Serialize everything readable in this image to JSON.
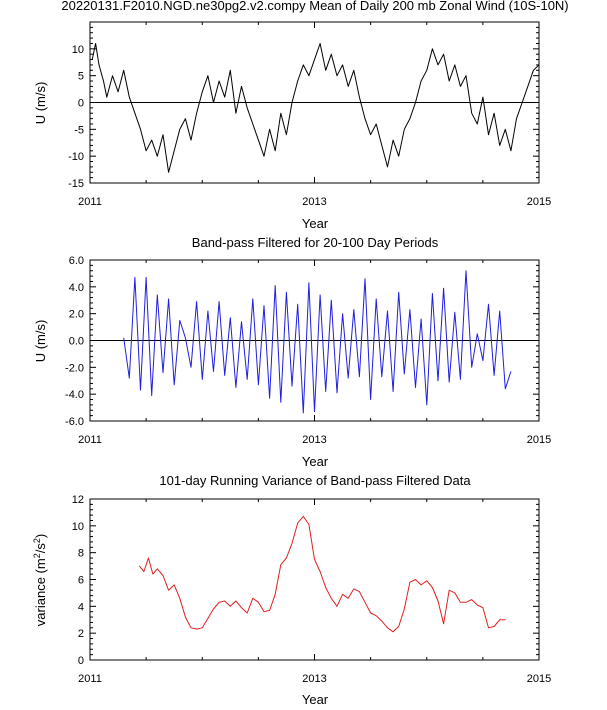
{
  "chart_data": [
    {
      "type": "line",
      "title": "20220131.F2010.NGD.ne30pg2.v2.compy Mean of Daily 200 mb Zonal Wind (10S-10N)",
      "xlabel": "Year",
      "ylabel": "U (m/s)",
      "xlim": [
        2011,
        2015
      ],
      "ylim": [
        -15,
        15
      ],
      "xticks": [
        2011,
        2013,
        2015
      ],
      "xticklabels": [
        "2011",
        "2013",
        "2015"
      ],
      "yticks": [
        -15,
        -10,
        -5,
        0,
        5,
        10,
        15
      ],
      "yticklabels": [
        "-15",
        "-10",
        "-5",
        "0",
        "5",
        "10",
        ""
      ],
      "reference_line": 0,
      "color": "#000000",
      "series": [
        {
          "name": "daily U",
          "x": [
            2011.02,
            2011.05,
            2011.08,
            2011.12,
            2011.15,
            2011.2,
            2011.25,
            2011.3,
            2011.35,
            2011.4,
            2011.45,
            2011.5,
            2011.55,
            2011.6,
            2011.65,
            2011.7,
            2011.75,
            2011.8,
            2011.85,
            2011.9,
            2011.95,
            2012.0,
            2012.05,
            2012.1,
            2012.15,
            2012.2,
            2012.25,
            2012.3,
            2012.35,
            2012.4,
            2012.45,
            2012.5,
            2012.55,
            2012.6,
            2012.65,
            2012.7,
            2012.75,
            2012.8,
            2012.85,
            2012.9,
            2012.95,
            2013.0,
            2013.05,
            2013.1,
            2013.15,
            2013.2,
            2013.25,
            2013.3,
            2013.35,
            2013.4,
            2013.45,
            2013.5,
            2013.55,
            2013.6,
            2013.65,
            2013.7,
            2013.75,
            2013.8,
            2013.85,
            2013.9,
            2013.95,
            2014.0,
            2014.05,
            2014.1,
            2014.15,
            2014.2,
            2014.25,
            2014.3,
            2014.35,
            2014.4,
            2014.45,
            2014.5,
            2014.55,
            2014.6,
            2014.65,
            2014.7,
            2014.75,
            2014.8,
            2014.85,
            2014.9,
            2014.95,
            2015.0
          ],
          "values": [
            8,
            11,
            7,
            4,
            1,
            5,
            2,
            6,
            1,
            -2,
            -5,
            -9,
            -7,
            -10,
            -6,
            -13,
            -9,
            -5,
            -3,
            -7,
            -2,
            2,
            5,
            0,
            4,
            1,
            6,
            -2,
            3,
            -1,
            -4,
            -7,
            -10,
            -5,
            -9,
            -2,
            -6,
            0,
            4,
            7,
            5,
            8,
            11,
            6,
            9,
            5,
            7,
            3,
            6,
            1,
            -3,
            -6,
            -4,
            -8,
            -12,
            -7,
            -10,
            -5,
            -3,
            0,
            4,
            6,
            10,
            7,
            9,
            4,
            7,
            3,
            5,
            -2,
            -4,
            1,
            -6,
            -2,
            -8,
            -5,
            -9,
            -3,
            0,
            3,
            6,
            7
          ]
        }
      ]
    },
    {
      "type": "line",
      "title": "Band-pass Filtered for 20-100 Day Periods",
      "xlabel": "Year",
      "ylabel": "U (m/s)",
      "xlim": [
        2011,
        2015
      ],
      "ylim": [
        -6,
        6
      ],
      "xticks": [
        2011,
        2013,
        2015
      ],
      "xticklabels": [
        "2011",
        "2013",
        "2015"
      ],
      "yticks": [
        -6,
        -4,
        -2,
        0,
        2,
        4,
        6
      ],
      "yticklabels": [
        "-6.0",
        "-4.0",
        "-2.0",
        "0.0",
        "2.0",
        "4.0",
        "6.0"
      ],
      "reference_line": 0,
      "color": "#1f1fe0",
      "series": [
        {
          "name": "band-pass U",
          "x": [
            2011.3,
            2011.35,
            2011.4,
            2011.45,
            2011.5,
            2011.55,
            2011.6,
            2011.65,
            2011.7,
            2011.75,
            2011.8,
            2011.85,
            2011.9,
            2011.95,
            2012.0,
            2012.05,
            2012.1,
            2012.15,
            2012.2,
            2012.25,
            2012.3,
            2012.35,
            2012.4,
            2012.45,
            2012.5,
            2012.55,
            2012.6,
            2012.65,
            2012.7,
            2012.75,
            2012.8,
            2012.85,
            2012.9,
            2012.95,
            2013.0,
            2013.05,
            2013.1,
            2013.15,
            2013.2,
            2013.25,
            2013.3,
            2013.35,
            2013.4,
            2013.45,
            2013.5,
            2013.55,
            2013.6,
            2013.65,
            2013.7,
            2013.75,
            2013.8,
            2013.85,
            2013.9,
            2013.95,
            2014.0,
            2014.05,
            2014.1,
            2014.15,
            2014.2,
            2014.25,
            2014.3,
            2014.35,
            2014.4,
            2014.45,
            2014.5,
            2014.55,
            2014.6,
            2014.65,
            2014.7,
            2014.75
          ],
          "values": [
            0.2,
            -2.8,
            4.7,
            -3.7,
            4.7,
            -4.1,
            3.4,
            -2.4,
            3.1,
            -3.3,
            1.5,
            0.2,
            -2.0,
            2.9,
            -2.9,
            2.2,
            -2.3,
            2.9,
            -2.6,
            1.7,
            -3.5,
            1.4,
            -2.9,
            3.1,
            -3.3,
            2.6,
            -4.3,
            4.1,
            -4.6,
            3.6,
            -3.4,
            2.7,
            -5.4,
            4.3,
            -5.3,
            3.4,
            -3.8,
            3.0,
            -3.9,
            2.0,
            -2.8,
            2.3,
            -2.7,
            4.6,
            -4.4,
            3.1,
            -2.7,
            2.2,
            -3.8,
            3.6,
            -2.5,
            2.3,
            -3.5,
            1.6,
            -4.8,
            3.5,
            -3.0,
            3.9,
            -3.1,
            2.1,
            -2.9,
            5.2,
            -2.0,
            0.5,
            -1.5,
            2.7,
            -2.6,
            2.2,
            -3.6,
            -2.3
          ]
        }
      ]
    },
    {
      "type": "line",
      "title": "101-day Running Variance of Band-pass Filtered Data",
      "xlabel": "Year",
      "ylabel": "variance (m²/s²)",
      "ylabel_base": "variance (m",
      "ylabel_mid": "/s",
      "ylabel_end": ")",
      "ylabel_sup1": "2",
      "ylabel_sup2": "2",
      "xlim": [
        2011,
        2015
      ],
      "ylim": [
        0,
        12
      ],
      "xticks": [
        2011,
        2013,
        2015
      ],
      "xticklabels": [
        "2011",
        "2013",
        "2015"
      ],
      "yticks": [
        0,
        2,
        4,
        6,
        8,
        10,
        12
      ],
      "yticklabels": [
        "0",
        "2",
        "4",
        "6",
        "8",
        "10",
        "12"
      ],
      "color": "#e01f1f",
      "series": [
        {
          "name": "running variance",
          "x": [
            2011.44,
            2011.48,
            2011.52,
            2011.56,
            2011.6,
            2011.65,
            2011.7,
            2011.75,
            2011.8,
            2011.85,
            2011.9,
            2011.95,
            2012.0,
            2012.05,
            2012.1,
            2012.15,
            2012.2,
            2012.25,
            2012.3,
            2012.35,
            2012.4,
            2012.45,
            2012.5,
            2012.55,
            2012.6,
            2012.65,
            2012.7,
            2012.75,
            2012.8,
            2012.85,
            2012.9,
            2012.95,
            2013.0,
            2013.05,
            2013.1,
            2013.15,
            2013.2,
            2013.25,
            2013.3,
            2013.35,
            2013.4,
            2013.45,
            2013.5,
            2013.55,
            2013.6,
            2013.65,
            2013.7,
            2013.75,
            2013.8,
            2013.85,
            2013.9,
            2013.95,
            2014.0,
            2014.05,
            2014.1,
            2014.15,
            2014.2,
            2014.25,
            2014.3,
            2014.35,
            2014.4,
            2014.45,
            2014.5,
            2014.55,
            2014.6,
            2014.65,
            2014.7
          ],
          "values": [
            7.0,
            6.6,
            7.6,
            6.4,
            6.8,
            6.3,
            5.2,
            5.6,
            4.6,
            3.2,
            2.4,
            2.3,
            2.4,
            3.1,
            3.8,
            4.3,
            4.4,
            4.0,
            4.4,
            3.9,
            3.5,
            4.6,
            4.3,
            3.6,
            3.7,
            4.9,
            7.1,
            7.6,
            8.7,
            10.2,
            10.7,
            10.1,
            7.5,
            6.6,
            5.4,
            4.6,
            4.0,
            4.9,
            4.6,
            5.3,
            5.1,
            4.3,
            3.5,
            3.3,
            2.9,
            2.4,
            2.1,
            2.5,
            3.8,
            5.8,
            6.0,
            5.6,
            5.9,
            5.4,
            4.4,
            2.7,
            5.2,
            5.0,
            4.3,
            4.3,
            4.5,
            4.1,
            3.9,
            2.4,
            2.5,
            3.0,
            3.0
          ]
        }
      ]
    }
  ]
}
